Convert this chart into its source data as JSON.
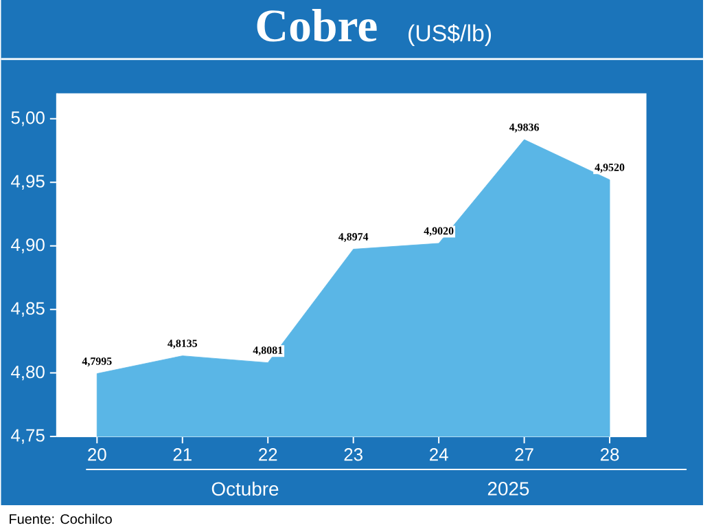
{
  "chart_data": {
    "type": "area",
    "title": "Cobre",
    "subtitle": "(US$/lb)",
    "categories": [
      "20",
      "21",
      "22",
      "23",
      "24",
      "27",
      "28"
    ],
    "values": [
      4.7995,
      4.8135,
      4.8081,
      4.8974,
      4.902,
      4.9836,
      4.952
    ],
    "value_labels": [
      "4,7995",
      "4,8135",
      "4,8081",
      "4,8974",
      "4,9020",
      "4,9836",
      "4,9520"
    ],
    "color": "#5ab6e6",
    "ylim": [
      4.75,
      5.02
    ],
    "yticks": [
      {
        "value": 4.75,
        "label": "4,75"
      },
      {
        "value": 4.8,
        "label": "4,80"
      },
      {
        "value": 4.85,
        "label": "4,85"
      },
      {
        "value": 4.9,
        "label": "4,90"
      },
      {
        "value": 4.95,
        "label": "4,95"
      },
      {
        "value": 5.0,
        "label": "5,00"
      }
    ],
    "annotations": [
      "Octubre",
      "2025",
      "Fuente: Cochilco"
    ]
  }
}
